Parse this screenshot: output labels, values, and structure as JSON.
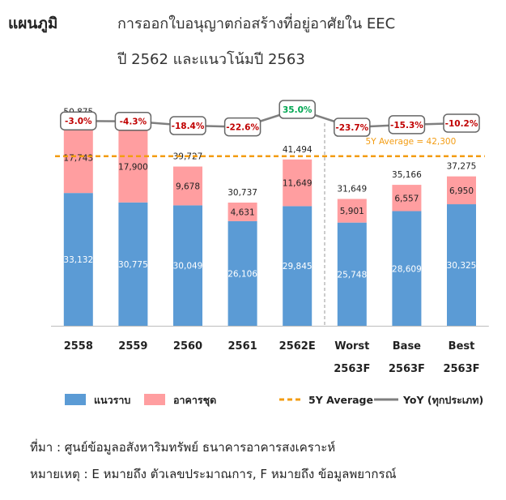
{
  "header": {
    "label": "แผนภูมิ",
    "title_line1": "การออกใบอนุญาตก่อสร้างที่อยู่อาศัยใน EEC",
    "title_line2": "ปี 2562 และแนวโน้มปี 2563"
  },
  "chart_data": {
    "type": "bar",
    "stacked": true,
    "categories": [
      [
        "2558"
      ],
      [
        "2559"
      ],
      [
        "2560"
      ],
      [
        "2561"
      ],
      [
        "2562E"
      ],
      [
        "Worst",
        "2563F"
      ],
      [
        "Base",
        "2563F"
      ],
      [
        "Best",
        "2563F"
      ]
    ],
    "series": [
      {
        "name": "แนวราบ",
        "color": "#5b9bd5",
        "values": [
          33132,
          30775,
          30049,
          26106,
          29845,
          25748,
          28609,
          30325
        ]
      },
      {
        "name": "อาคารชุด",
        "color": "#ff9ea0",
        "values": [
          17743,
          17900,
          9678,
          4631,
          11649,
          5901,
          6557,
          6950
        ]
      }
    ],
    "value_labels_bottom": [
      "33,132",
      "30,775",
      "30,049",
      "26,106",
      "29,845",
      "25,748",
      "28,609",
      "30,325"
    ],
    "value_labels_top": [
      "17,743",
      "17,900",
      "9,678",
      "4,631",
      "11,649",
      "5,901",
      "6,557",
      "6,950"
    ],
    "totals": [
      50875,
      48675,
      39727,
      30737,
      41494,
      31649,
      35166,
      37275
    ],
    "total_labels": [
      "50,875",
      "48,675",
      "39,727",
      "30,737",
      "41,494",
      "31,649",
      "35,166",
      "37,275"
    ],
    "yoy": [
      -3.0,
      -4.3,
      -18.4,
      -22.6,
      35.0,
      -23.7,
      -15.3,
      -10.2
    ],
    "yoy_labels": [
      "-3.0%",
      "-4.3%",
      "-18.4%",
      "-22.6%",
      "35.0%",
      "-23.7%",
      "-15.3%",
      "-10.2%"
    ],
    "average": {
      "value": 42300,
      "label": "5Y Average =  42,300",
      "color": "#f39c12"
    },
    "forecast_divider_after_index": 4,
    "ylim": [
      0,
      55000
    ],
    "legend": [
      {
        "name": "แนวราบ",
        "kind": "box",
        "color": "#5b9bd5"
      },
      {
        "name": "อาคารชุด",
        "kind": "box",
        "color": "#ff9ea0"
      },
      {
        "name": "5Y Average",
        "kind": "dash",
        "color": "#f39c12"
      },
      {
        "name": "YoY (ทุกประเภท)",
        "kind": "line",
        "color": "#7f7f7f"
      }
    ],
    "colors": {
      "negative": "#c00000",
      "positive": "#00a651",
      "yoy_line": "#7f7f7f"
    }
  },
  "footer": {
    "source": "ที่มา : ศูนย์ข้อมูลอสังหาริมทรัพย์ ธนาคารอาคารสงเคราะห์",
    "note": "หมายเหตุ : E หมายถึง ตัวเลขประมาณการ, F หมายถึง ข้อมูลพยากรณ์"
  }
}
